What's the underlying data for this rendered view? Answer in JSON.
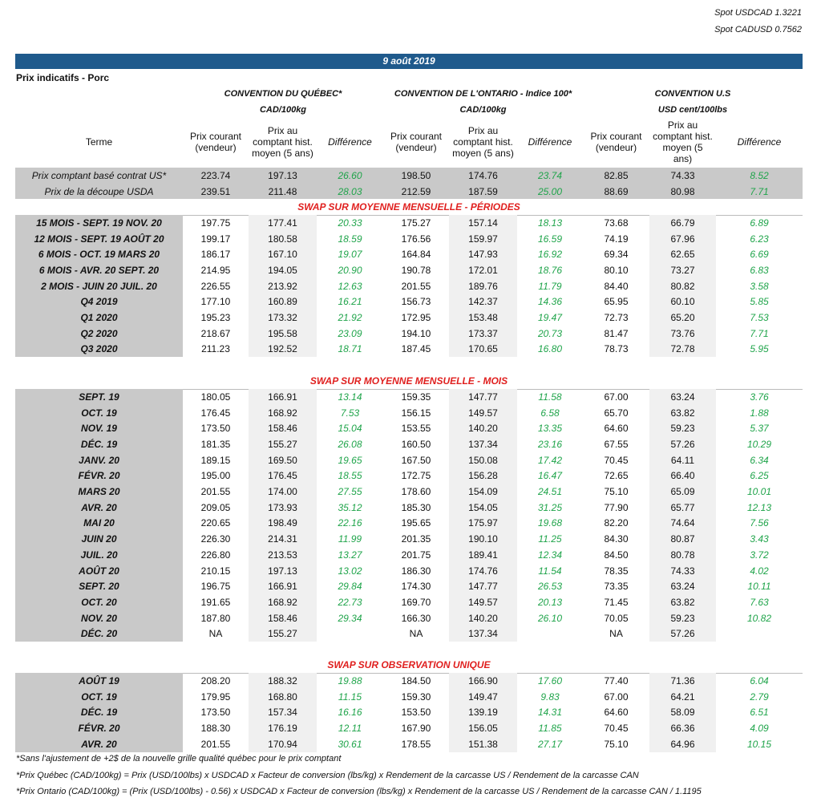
{
  "header": {
    "spot": [
      "Spot USDCAD 1.3221",
      "Spot CADUSD 0.7562"
    ],
    "date": "9 août 2019",
    "subtitle": "Prix indicatifs - Porc"
  },
  "conventions": [
    {
      "title": "CONVENTION DU QUÉBEC*",
      "unit": "CAD/100kg"
    },
    {
      "title": "CONVENTION DE L'ONTARIO - Indice 100*",
      "unit": "CAD/100kg"
    },
    {
      "title": "CONVENTION U.S",
      "unit": "USD cent/100lbs"
    }
  ],
  "term_header": "Terme",
  "column_headers": [
    [
      "Prix courant (vendeur)",
      "Prix au comptant hist. moyen (5 ans)",
      "Différence"
    ],
    [
      "Prix courant (vendeur)",
      "Prix au comptant hist. moyen (5 ans)",
      "Différence"
    ],
    [
      "Prix courant (vendeur)",
      "Prix au comptant hist. moyen (5 ans)",
      "Différence"
    ]
  ],
  "top_rows": [
    {
      "label": "Prix comptant basé contrat US*",
      "cells": [
        "223.74",
        "197.13",
        "26.60",
        "198.50",
        "174.76",
        "23.74",
        "82.85",
        "74.33",
        "8.52"
      ]
    },
    {
      "label": "Prix de la découpe USDA",
      "cells": [
        "239.51",
        "211.48",
        "28.03",
        "212.59",
        "187.59",
        "25.00",
        "88.69",
        "80.98",
        "7.71"
      ]
    }
  ],
  "sections": [
    {
      "title": "SWAP SUR MOYENNE MENSUELLE - PÉRIODES",
      "rows": [
        {
          "label": "15 MOIS - SEPT. 19 NOV. 20",
          "cells": [
            "197.75",
            "177.41",
            "20.33",
            "175.27",
            "157.14",
            "18.13",
            "73.68",
            "66.79",
            "6.89"
          ]
        },
        {
          "label": "12 MOIS - SEPT. 19 AOÛT 20",
          "cells": [
            "199.17",
            "180.58",
            "18.59",
            "176.56",
            "159.97",
            "16.59",
            "74.19",
            "67.96",
            "6.23"
          ]
        },
        {
          "label": "6 MOIS - OCT. 19 MARS 20",
          "cells": [
            "186.17",
            "167.10",
            "19.07",
            "164.84",
            "147.93",
            "16.92",
            "69.34",
            "62.65",
            "6.69"
          ]
        },
        {
          "label": "6 MOIS - AVR. 20 SEPT. 20",
          "cells": [
            "214.95",
            "194.05",
            "20.90",
            "190.78",
            "172.01",
            "18.76",
            "80.10",
            "73.27",
            "6.83"
          ]
        },
        {
          "label": "2 MOIS - JUIN 20 JUIL. 20",
          "cells": [
            "226.55",
            "213.92",
            "12.63",
            "201.55",
            "189.76",
            "11.79",
            "84.40",
            "80.82",
            "3.58"
          ]
        },
        {
          "label": "Q4 2019",
          "cells": [
            "177.10",
            "160.89",
            "16.21",
            "156.73",
            "142.37",
            "14.36",
            "65.95",
            "60.10",
            "5.85"
          ]
        },
        {
          "label": "Q1 2020",
          "cells": [
            "195.23",
            "173.32",
            "21.92",
            "172.95",
            "153.48",
            "19.47",
            "72.73",
            "65.20",
            "7.53"
          ]
        },
        {
          "label": "Q2 2020",
          "cells": [
            "218.67",
            "195.58",
            "23.09",
            "194.10",
            "173.37",
            "20.73",
            "81.47",
            "73.76",
            "7.71"
          ]
        },
        {
          "label": "Q3 2020",
          "cells": [
            "211.23",
            "192.52",
            "18.71",
            "187.45",
            "170.65",
            "16.80",
            "78.73",
            "72.78",
            "5.95"
          ]
        }
      ]
    },
    {
      "title": "SWAP SUR MOYENNE MENSUELLE - MOIS",
      "rows": [
        {
          "label": "SEPT. 19",
          "cells": [
            "180.05",
            "166.91",
            "13.14",
            "159.35",
            "147.77",
            "11.58",
            "67.00",
            "63.24",
            "3.76"
          ]
        },
        {
          "label": "OCT. 19",
          "cells": [
            "176.45",
            "168.92",
            "7.53",
            "156.15",
            "149.57",
            "6.58",
            "65.70",
            "63.82",
            "1.88"
          ]
        },
        {
          "label": "NOV. 19",
          "cells": [
            "173.50",
            "158.46",
            "15.04",
            "153.55",
            "140.20",
            "13.35",
            "64.60",
            "59.23",
            "5.37"
          ]
        },
        {
          "label": "DÉC. 19",
          "cells": [
            "181.35",
            "155.27",
            "26.08",
            "160.50",
            "137.34",
            "23.16",
            "67.55",
            "57.26",
            "10.29"
          ]
        },
        {
          "label": "JANV. 20",
          "cells": [
            "189.15",
            "169.50",
            "19.65",
            "167.50",
            "150.08",
            "17.42",
            "70.45",
            "64.11",
            "6.34"
          ]
        },
        {
          "label": "FÉVR. 20",
          "cells": [
            "195.00",
            "176.45",
            "18.55",
            "172.75",
            "156.28",
            "16.47",
            "72.65",
            "66.40",
            "6.25"
          ]
        },
        {
          "label": "MARS 20",
          "cells": [
            "201.55",
            "174.00",
            "27.55",
            "178.60",
            "154.09",
            "24.51",
            "75.10",
            "65.09",
            "10.01"
          ]
        },
        {
          "label": "AVR. 20",
          "cells": [
            "209.05",
            "173.93",
            "35.12",
            "185.30",
            "154.05",
            "31.25",
            "77.90",
            "65.77",
            "12.13"
          ]
        },
        {
          "label": "MAI 20",
          "cells": [
            "220.65",
            "198.49",
            "22.16",
            "195.65",
            "175.97",
            "19.68",
            "82.20",
            "74.64",
            "7.56"
          ]
        },
        {
          "label": "JUIN 20",
          "cells": [
            "226.30",
            "214.31",
            "11.99",
            "201.35",
            "190.10",
            "11.25",
            "84.30",
            "80.87",
            "3.43"
          ]
        },
        {
          "label": "JUIL. 20",
          "cells": [
            "226.80",
            "213.53",
            "13.27",
            "201.75",
            "189.41",
            "12.34",
            "84.50",
            "80.78",
            "3.72"
          ]
        },
        {
          "label": "AOÛT 20",
          "cells": [
            "210.15",
            "197.13",
            "13.02",
            "186.30",
            "174.76",
            "11.54",
            "78.35",
            "74.33",
            "4.02"
          ]
        },
        {
          "label": "SEPT. 20",
          "cells": [
            "196.75",
            "166.91",
            "29.84",
            "174.30",
            "147.77",
            "26.53",
            "73.35",
            "63.24",
            "10.11"
          ]
        },
        {
          "label": "OCT. 20",
          "cells": [
            "191.65",
            "168.92",
            "22.73",
            "169.70",
            "149.57",
            "20.13",
            "71.45",
            "63.82",
            "7.63"
          ]
        },
        {
          "label": "NOV. 20",
          "cells": [
            "187.80",
            "158.46",
            "29.34",
            "166.30",
            "140.20",
            "26.10",
            "70.05",
            "59.23",
            "10.82"
          ]
        },
        {
          "label": "DÉC. 20",
          "cells": [
            "NA",
            "155.27",
            null,
            "NA",
            "137.34",
            null,
            "NA",
            "57.26",
            null
          ]
        }
      ]
    },
    {
      "title": "SWAP SUR OBSERVATION UNIQUE",
      "rows": [
        {
          "label": "AOÛT 19",
          "cells": [
            "208.20",
            "188.32",
            "19.88",
            "184.50",
            "166.90",
            "17.60",
            "77.40",
            "71.36",
            "6.04"
          ]
        },
        {
          "label": "OCT. 19",
          "cells": [
            "179.95",
            "168.80",
            "11.15",
            "159.30",
            "149.47",
            "9.83",
            "67.00",
            "64.21",
            "2.79"
          ]
        },
        {
          "label": "DÉC. 19",
          "cells": [
            "173.50",
            "157.34",
            "16.16",
            "153.50",
            "139.19",
            "14.31",
            "64.60",
            "58.09",
            "6.51"
          ]
        },
        {
          "label": "FÉVR. 20",
          "cells": [
            "188.30",
            "176.19",
            "12.11",
            "167.90",
            "156.05",
            "11.85",
            "70.45",
            "66.36",
            "4.09"
          ]
        },
        {
          "label": "AVR. 20",
          "cells": [
            "201.55",
            "170.94",
            "30.61",
            "178.55",
            "151.38",
            "27.17",
            "75.10",
            "64.96",
            "10.15"
          ]
        }
      ]
    }
  ],
  "footnotes": [
    "*Sans l'ajustement de +2$ de la nouvelle grille qualité québec pour le prix comptant",
    "*Prix Québec (CAD/100kg) = Prix (USD/100lbs) x USDCAD x Facteur de conversion (lbs/kg) x Rendement de la carcasse US / Rendement de la carcasse CAN",
    "*Prix Ontario (CAD/100kg) = (Prix (USD/100lbs) - 0.56) x USDCAD x Facteur de conversion (lbs/kg) x Rendement de la carcasse US / Rendement de la carcasse CAN / 1.1195"
  ]
}
